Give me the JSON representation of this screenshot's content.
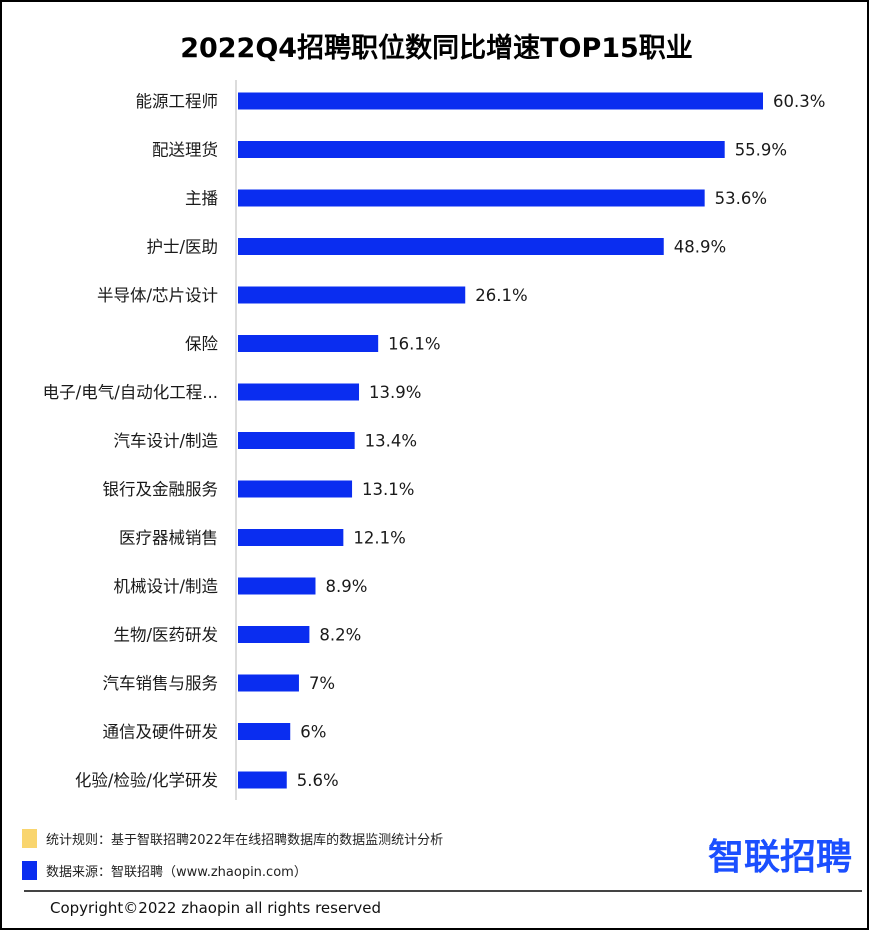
{
  "chart_data": {
    "type": "bar",
    "orientation": "horizontal",
    "title": "2022Q4招聘职位数同比增速TOP15职业",
    "categories": [
      "能源工程师",
      "配送理货",
      "主播",
      "护士/医助",
      "半导体/芯片设计",
      "保险",
      "电子/电气/自动化工程...",
      "汽车设计/制造",
      "银行及金融服务",
      "医疗器械销售",
      "机械设计/制造",
      "生物/医药研发",
      "汽车销售与服务",
      "通信及硬件研发",
      "化验/检验/化学研发"
    ],
    "values": [
      60.3,
      55.9,
      53.6,
      48.9,
      26.1,
      16.1,
      13.9,
      13.4,
      13.1,
      12.1,
      8.9,
      8.2,
      7,
      6,
      5.6
    ],
    "value_labels": [
      "60.3%",
      "55.9%",
      "53.6%",
      "48.9%",
      "26.1%",
      "16.1%",
      "13.9%",
      "13.4%",
      "13.1%",
      "12.1%",
      "8.9%",
      "8.2%",
      "7%",
      "6%",
      "5.6%"
    ],
    "xlim": [
      0,
      60.3
    ],
    "grid": false,
    "bar_color": "#0a2df0"
  },
  "notes": [
    {
      "text": "统计规则：基于智联招聘2022年在线招聘数据库的数据监测统计分析",
      "color": "#f9d56e"
    },
    {
      "text": "数据来源：智联招聘（www.zhaopin.com）",
      "color": "#0a2df0"
    }
  ],
  "brand": {
    "logo_text": "智联招聘",
    "color": "#1b4fff"
  },
  "footer": {
    "copyright": "Copyright©2022 zhaopin all rights reserved"
  }
}
